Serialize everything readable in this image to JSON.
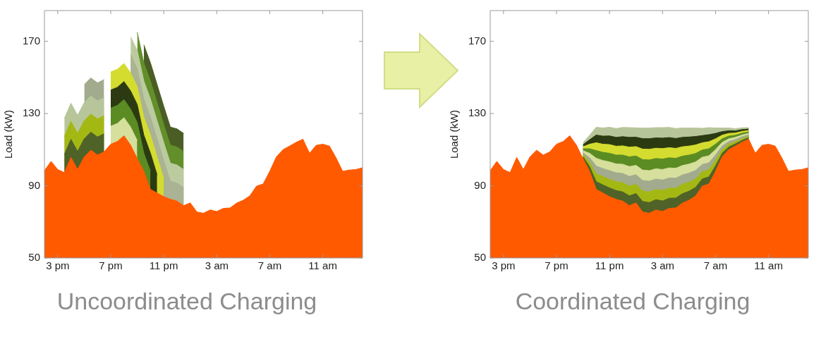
{
  "chart_data": [
    {
      "type": "area",
      "title": "Uncoordinated Charging",
      "ylabel": "Load (kW)",
      "grid": false,
      "legend": false,
      "categories": [
        null,
        null,
        "3 pm",
        null,
        null,
        null,
        null,
        null,
        null,
        null,
        "7 pm",
        null,
        null,
        null,
        null,
        null,
        null,
        null,
        "11 pm",
        null,
        null,
        null,
        null,
        null,
        null,
        null,
        "3 am",
        null,
        null,
        null,
        null,
        null,
        null,
        null,
        "7 am",
        null,
        null,
        null,
        null,
        null,
        null,
        null,
        "11 am",
        null,
        null,
        null,
        null,
        null,
        null
      ],
      "ylim": [
        50,
        187
      ],
      "yticks": [
        50,
        90,
        130,
        170
      ],
      "series": [
        {
          "color": "#ff5a00",
          "values": [
            98.4,
            103.5,
            99,
            97.3,
            105.7,
            99,
            106,
            109.7,
            107,
            108.8,
            113,
            114.5,
            117.7,
            112.5,
            105,
            98,
            88,
            86,
            84,
            82.5,
            81.5,
            79,
            80.5,
            75.5,
            74.8,
            76.6,
            75.8,
            77.5,
            77.7,
            80.4,
            82,
            84.4,
            89.8,
            91,
            98,
            106,
            110,
            112,
            114.1,
            115.8,
            108,
            112.4,
            113,
            112,
            105.5,
            98,
            98.7,
            99,
            100
          ]
        },
        {
          "color": "#4f6228",
          "values": [
            null,
            null,
            null,
            107.3,
            115.7,
            109,
            116,
            119.7,
            117,
            118.8,
            null,
            null,
            null,
            null,
            null,
            null,
            null,
            null,
            null,
            null,
            null,
            null,
            null,
            null,
            null,
            null,
            null,
            null,
            null,
            null,
            null,
            null,
            null,
            null,
            null,
            null,
            null,
            null,
            null,
            null,
            null,
            null,
            null,
            null,
            null,
            null,
            null,
            null,
            null
          ]
        },
        {
          "color": "#a4b814",
          "values": [
            null,
            null,
            null,
            117.3,
            125.7,
            119,
            126,
            129.7,
            127,
            128.8,
            null,
            null,
            null,
            null,
            null,
            null,
            null,
            null,
            null,
            null,
            null,
            null,
            null,
            null,
            null,
            null,
            null,
            null,
            null,
            null,
            null,
            null,
            null,
            null,
            null,
            null,
            null,
            null,
            null,
            null,
            null,
            null,
            null,
            null,
            null,
            null,
            null,
            null,
            null
          ]
        },
        {
          "color": "#b7c69a",
          "values": [
            null,
            null,
            null,
            127.3,
            135.7,
            129,
            136,
            139.7,
            137,
            138.8,
            null,
            null,
            null,
            null,
            null,
            null,
            null,
            null,
            null,
            null,
            null,
            null,
            null,
            null,
            null,
            null,
            null,
            null,
            null,
            null,
            null,
            null,
            null,
            null,
            null,
            null,
            null,
            null,
            null,
            null,
            null,
            null,
            null,
            null,
            null,
            null,
            null,
            null,
            null
          ]
        },
        {
          "color": "#a3ab8e",
          "values": [
            null,
            null,
            null,
            null,
            null,
            null,
            146,
            149.7,
            147,
            148.8,
            null,
            null,
            null,
            null,
            null,
            null,
            null,
            null,
            null,
            null,
            null,
            null,
            null,
            null,
            null,
            null,
            null,
            null,
            null,
            null,
            null,
            null,
            null,
            null,
            null,
            null,
            null,
            null,
            null,
            null,
            null,
            null,
            null,
            null,
            null,
            null,
            null,
            null,
            null
          ]
        },
        {
          "color": "#d6df9c",
          "values": [
            null,
            null,
            null,
            null,
            null,
            null,
            null,
            null,
            null,
            null,
            123,
            124.5,
            127.7,
            122.5,
            115,
            null,
            null,
            null,
            null,
            null,
            null,
            null,
            null,
            null,
            null,
            null,
            null,
            null,
            null,
            null,
            null,
            null,
            null,
            null,
            null,
            null,
            null,
            null,
            null,
            null,
            null,
            null,
            null,
            null,
            null,
            null,
            null,
            null,
            null
          ]
        },
        {
          "color": "#5b8c23",
          "values": [
            null,
            null,
            null,
            null,
            null,
            null,
            null,
            null,
            null,
            null,
            133,
            134.5,
            137.7,
            132.5,
            125,
            108,
            98,
            null,
            null,
            null,
            null,
            null,
            null,
            null,
            null,
            null,
            null,
            null,
            null,
            null,
            null,
            null,
            null,
            null,
            null,
            null,
            null,
            null,
            null,
            null,
            null,
            null,
            null,
            null,
            null,
            null,
            null,
            null,
            null
          ]
        },
        {
          "color": "#2c3a12",
          "values": [
            null,
            null,
            null,
            null,
            null,
            null,
            null,
            null,
            null,
            null,
            143,
            144.5,
            147.7,
            142.5,
            135,
            118,
            108,
            96,
            null,
            null,
            null,
            null,
            null,
            null,
            null,
            null,
            null,
            null,
            null,
            null,
            null,
            null,
            null,
            null,
            null,
            null,
            null,
            null,
            null,
            null,
            null,
            null,
            null,
            null,
            null,
            null,
            null,
            null,
            null
          ]
        },
        {
          "color": "#d4dc30",
          "values": [
            null,
            null,
            null,
            null,
            null,
            null,
            null,
            null,
            null,
            null,
            153,
            154.5,
            157.7,
            152.5,
            145,
            128,
            118,
            106,
            94,
            null,
            null,
            null,
            null,
            null,
            null,
            null,
            null,
            null,
            null,
            null,
            null,
            null,
            null,
            null,
            null,
            null,
            null,
            null,
            null,
            null,
            null,
            null,
            null,
            null,
            null,
            null,
            null,
            null,
            null
          ]
        },
        {
          "color": "#aab393",
          "values": [
            null,
            null,
            null,
            null,
            null,
            null,
            null,
            null,
            null,
            null,
            null,
            null,
            null,
            162.5,
            155,
            138,
            128,
            116,
            104,
            92.5,
            91.5,
            89,
            null,
            null,
            null,
            null,
            null,
            null,
            null,
            null,
            null,
            null,
            null,
            null,
            null,
            null,
            null,
            null,
            null,
            null,
            null,
            null,
            null,
            null,
            null,
            null,
            null,
            null,
            null
          ]
        },
        {
          "color": "#bccb9f",
          "values": [
            null,
            null,
            null,
            null,
            null,
            null,
            null,
            null,
            null,
            null,
            null,
            null,
            null,
            172.5,
            165,
            148,
            138,
            126,
            114,
            102.5,
            101.5,
            99,
            null,
            null,
            null,
            null,
            null,
            null,
            null,
            null,
            null,
            null,
            null,
            null,
            null,
            null,
            null,
            null,
            null,
            null,
            null,
            null,
            null,
            null,
            null,
            null,
            null,
            null,
            null
          ]
        },
        {
          "color": "#628f2a",
          "values": [
            null,
            null,
            null,
            null,
            null,
            null,
            null,
            null,
            null,
            null,
            null,
            null,
            null,
            null,
            175,
            158,
            148,
            136,
            124,
            112.5,
            111.5,
            109,
            null,
            null,
            null,
            null,
            null,
            null,
            null,
            null,
            null,
            null,
            null,
            null,
            null,
            null,
            null,
            null,
            null,
            null,
            null,
            null,
            null,
            null,
            null,
            null,
            null,
            null,
            null
          ]
        },
        {
          "color": "#4a5d24",
          "values": [
            null,
            null,
            null,
            null,
            null,
            null,
            null,
            null,
            null,
            null,
            null,
            null,
            null,
            null,
            null,
            168,
            158,
            146,
            134,
            122.5,
            121.5,
            119,
            null,
            null,
            null,
            null,
            null,
            null,
            null,
            null,
            null,
            null,
            null,
            null,
            null,
            null,
            null,
            null,
            null,
            null,
            null,
            null,
            null,
            null,
            null,
            null,
            null,
            null,
            null
          ]
        }
      ]
    },
    {
      "type": "area",
      "title": "Coordinated Charging",
      "ylabel": "Load (kW)",
      "grid": false,
      "legend": false,
      "categories": [
        null,
        null,
        "3 pm",
        null,
        null,
        null,
        null,
        null,
        null,
        null,
        "7 pm",
        null,
        null,
        null,
        null,
        null,
        null,
        null,
        "11 pm",
        null,
        null,
        null,
        null,
        null,
        null,
        null,
        "3 am",
        null,
        null,
        null,
        null,
        null,
        null,
        null,
        "7 am",
        null,
        null,
        null,
        null,
        null,
        null,
        null,
        "11 am",
        null,
        null,
        null,
        null,
        null,
        null
      ],
      "ylim": [
        50,
        187
      ],
      "yticks": [
        50,
        90,
        130,
        170
      ],
      "series": [
        {
          "color": "#ff5a00",
          "values": [
            98.4,
            103.5,
            99,
            97.3,
            105.7,
            99,
            106,
            109.7,
            107,
            108.8,
            113,
            114.5,
            117.7,
            112.5,
            105,
            98,
            88,
            86,
            84,
            82.5,
            81.5,
            79,
            80.5,
            75.5,
            74.8,
            76.6,
            75.8,
            77.5,
            77.7,
            80.4,
            82,
            84.4,
            89.8,
            91,
            98,
            106,
            110,
            112,
            114.1,
            115.8,
            108,
            112.4,
            113,
            112,
            105.5,
            98,
            98.7,
            99,
            100
          ]
        },
        {
          "color": "#4f6228",
          "values": [
            null,
            null,
            null,
            null,
            null,
            null,
            null,
            null,
            null,
            null,
            null,
            null,
            null,
            null,
            106.1,
            100.5,
            92.3,
            90.5,
            88.8,
            87.4,
            86.6,
            84.4,
            85.7,
            81.3,
            80.7,
            82.3,
            81.6,
            83.1,
            83.2,
            85.6,
            87,
            89.1,
            93.8,
            94.9,
            101,
            108,
            111.5,
            113.2,
            115.1,
            116.6,
            null,
            null,
            null,
            null,
            null,
            null,
            null,
            null,
            null
          ]
        },
        {
          "color": "#a4b814",
          "values": [
            null,
            null,
            null,
            null,
            null,
            null,
            null,
            null,
            null,
            null,
            null,
            null,
            null,
            null,
            107.2,
            103,
            96.6,
            95,
            93.6,
            92.3,
            91.7,
            89.8,
            90.9,
            87.1,
            86.6,
            88,
            87.4,
            88.7,
            88.7,
            90.8,
            92,
            93.8,
            97.8,
            98.8,
            104,
            110,
            113,
            114.4,
            116.1,
            117.4,
            null,
            null,
            null,
            null,
            null,
            null,
            null,
            null,
            null
          ]
        },
        {
          "color": "#a3ab8e",
          "values": [
            null,
            null,
            null,
            null,
            null,
            null,
            null,
            null,
            null,
            null,
            null,
            null,
            null,
            null,
            108.3,
            105.5,
            100.9,
            99.5,
            98.4,
            97.2,
            96.8,
            95.2,
            96.1,
            92.9,
            92.5,
            93.7,
            93.2,
            94.3,
            94.2,
            96,
            97,
            98.5,
            101.8,
            102.7,
            107,
            112,
            114.5,
            115.6,
            117.1,
            118.2,
            null,
            null,
            null,
            null,
            null,
            null,
            null,
            null,
            null
          ]
        },
        {
          "color": "#d6df9c",
          "values": [
            null,
            null,
            null,
            null,
            null,
            null,
            null,
            null,
            null,
            null,
            null,
            null,
            null,
            null,
            109.4,
            108,
            105.2,
            104,
            103.2,
            102.1,
            101.9,
            100.6,
            101.3,
            98.7,
            98.4,
            99.4,
            99,
            99.9,
            99.7,
            101.2,
            102,
            103.2,
            105.8,
            106.6,
            110,
            114,
            116,
            116.8,
            118.1,
            119,
            null,
            null,
            null,
            null,
            null,
            null,
            null,
            null,
            null
          ]
        },
        {
          "color": "#5b8c23",
          "values": [
            null,
            null,
            null,
            null,
            null,
            null,
            null,
            null,
            null,
            null,
            null,
            null,
            null,
            null,
            110.5,
            110.5,
            109.5,
            108.5,
            108,
            107,
            107,
            106,
            106.5,
            104.5,
            104.3,
            105.1,
            104.8,
            105.5,
            105.2,
            106.4,
            107,
            107.9,
            109.8,
            110.5,
            113,
            116,
            117.5,
            118,
            119.1,
            119.8,
            null,
            null,
            null,
            null,
            null,
            null,
            null,
            null,
            null
          ]
        },
        {
          "color": "#d4dc30",
          "values": [
            null,
            null,
            null,
            null,
            null,
            null,
            null,
            null,
            null,
            null,
            null,
            null,
            null,
            null,
            111.6,
            113,
            113.8,
            113,
            112.8,
            111.9,
            112.1,
            111.4,
            111.7,
            110.3,
            110.2,
            110.8,
            110.6,
            111.1,
            110.7,
            111.6,
            112,
            112.6,
            113.8,
            114.4,
            116,
            118,
            119,
            119.2,
            120.1,
            120.6,
            null,
            null,
            null,
            null,
            null,
            null,
            null,
            null,
            null
          ]
        },
        {
          "color": "#2c3a12",
          "values": [
            null,
            null,
            null,
            null,
            null,
            null,
            null,
            null,
            null,
            null,
            null,
            null,
            null,
            null,
            112.7,
            115.5,
            118.1,
            117.5,
            117.6,
            116.8,
            117.2,
            116.8,
            116.9,
            116.1,
            116.1,
            116.5,
            116.4,
            116.7,
            116.2,
            116.8,
            117,
            117.3,
            117.8,
            118.3,
            119,
            120,
            120.5,
            120.4,
            121.1,
            121.4,
            null,
            null,
            null,
            null,
            null,
            null,
            null,
            null,
            null
          ]
        },
        {
          "color": "#b7c69a",
          "values": [
            null,
            null,
            null,
            null,
            null,
            null,
            null,
            null,
            null,
            null,
            null,
            null,
            null,
            null,
            113.8,
            118,
            122.4,
            122,
            122.4,
            121.7,
            122.3,
            122.2,
            122.1,
            121.9,
            122,
            122.2,
            122.2,
            122.3,
            121.7,
            122,
            122,
            122,
            121.8,
            122.2,
            122,
            122,
            122,
            121.6,
            122.1,
            122.2,
            null,
            null,
            null,
            null,
            null,
            null,
            null,
            null,
            null
          ]
        }
      ]
    }
  ]
}
